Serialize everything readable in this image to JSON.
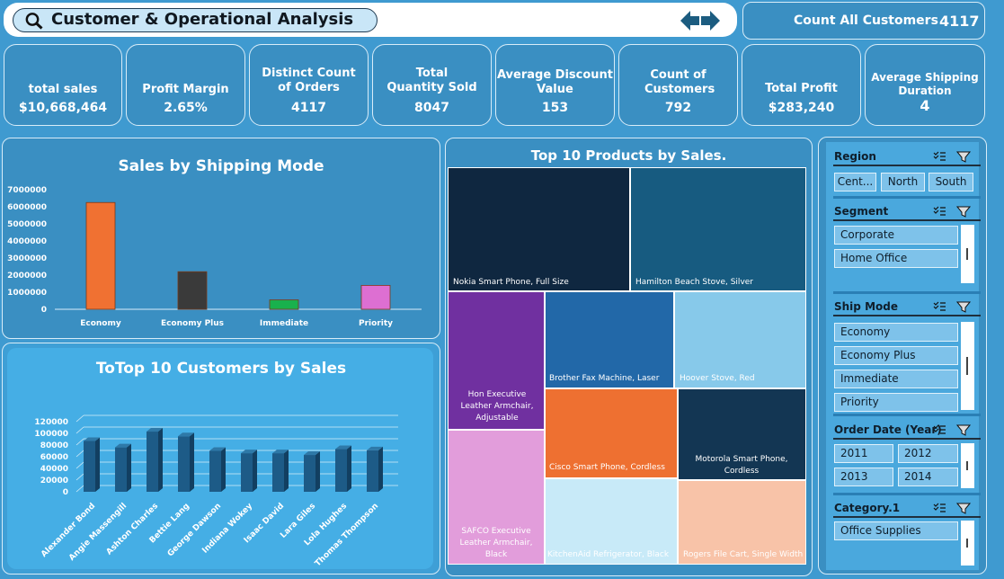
{
  "header": {
    "title": "Customer & Operational Analysis",
    "count_all_label": "Count All Customers",
    "count_all_value": "4117"
  },
  "kpis": [
    {
      "label": "total sales",
      "value": "$10,668,464"
    },
    {
      "label": "Profit Margin",
      "value": "2.65%"
    },
    {
      "label": "Distinct Count of Orders",
      "value": "4117"
    },
    {
      "label": "Total Quantity Sold",
      "value": "8047"
    },
    {
      "label": "Average Discount Value",
      "value": "153"
    },
    {
      "label": "Count of Customers",
      "value": "792"
    },
    {
      "label": "Total Profit",
      "value": "$283,240"
    },
    {
      "label": "Average Shipping Duration",
      "value": "4"
    }
  ],
  "chart_data": [
    {
      "type": "bar",
      "title": "Sales by Shipping Mode",
      "categories": [
        "Economy",
        "Economy Plus",
        "Immediate",
        "Priority"
      ],
      "values": [
        6250000,
        2200000,
        550000,
        1400000
      ],
      "colors": [
        "#f07132",
        "#3a3a3a",
        "#19b14d",
        "#dd6fd2"
      ],
      "yticks": [
        "7000000",
        "6000000",
        "5000000",
        "4000000",
        "3000000",
        "2000000",
        "1000000",
        "0"
      ],
      "ylim": [
        0,
        7000000
      ],
      "xlabel": "",
      "ylabel": ""
    },
    {
      "type": "bar",
      "title": "ToTop 10 Customers by Sales",
      "categories": [
        "Alexander Bond",
        "Angie Massengill",
        "Ashton Charles",
        "Bettie Lang",
        "George Dawson",
        "Indiana Wokey",
        "Isaac David",
        "Lara Giles",
        "Lola Hughes",
        "Thomas Thompson"
      ],
      "values": [
        87000,
        76000,
        103000,
        95000,
        70000,
        66000,
        66000,
        63000,
        73000,
        71000
      ],
      "yticks": [
        "120000",
        "100000",
        "80000",
        "60000",
        "40000",
        "20000",
        "0"
      ],
      "ylim": [
        0,
        120000
      ],
      "color": "#1d5b87"
    },
    {
      "type": "treemap",
      "title": "Top 10 Products by Sales.",
      "items": [
        {
          "label": "Nokia Smart Phone, Full Size",
          "color": "#0f2740"
        },
        {
          "label": "Hamilton Beach Stove, Silver",
          "color": "#175b80"
        },
        {
          "label": "Hon Executive Leather Armchair, Adjustable",
          "color": "#7030a0"
        },
        {
          "label": "Brother Fax Machine, Laser",
          "color": "#2268a8"
        },
        {
          "label": "Hoover Stove, Red",
          "color": "#87c9ea"
        },
        {
          "label": "Cisco Smart Phone, Cordless",
          "color": "#ee7031"
        },
        {
          "label": "Motorola Smart Phone, Cordless",
          "color": "#133653"
        },
        {
          "label": "SAFCO Executive Leather Armchair, Black",
          "color": "#e29ddb"
        },
        {
          "label": "KitchenAid Refrigerator, Black",
          "color": "#c8eaf8"
        },
        {
          "label": "Rogers File Cart, Single Width",
          "color": "#f8c3a8"
        }
      ]
    }
  ],
  "slicers": {
    "region": {
      "title": "Region",
      "options": [
        "Cent...",
        "North",
        "South"
      ]
    },
    "segment": {
      "title": "Segment",
      "options": [
        "Corporate",
        "Home Office"
      ]
    },
    "ship_mode": {
      "title": "Ship Mode",
      "options": [
        "Economy",
        "Economy Plus",
        "Immediate",
        "Priority"
      ]
    },
    "order_date": {
      "title": "Order Date (Year)",
      "options": [
        "2011",
        "2012",
        "2013",
        "2014"
      ]
    },
    "category": {
      "title": "Category.1",
      "options": [
        "Office Supplies"
      ]
    }
  }
}
